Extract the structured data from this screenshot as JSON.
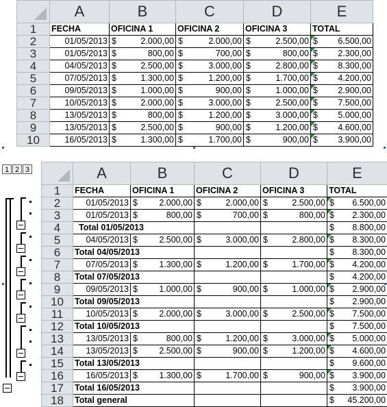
{
  "columns": [
    "A",
    "B",
    "C",
    "D",
    "E"
  ],
  "headers": [
    "FECHA",
    "OFICINA 1",
    "OFICINA 2",
    "OFICINA 3",
    "TOTAL"
  ],
  "currency": "$",
  "outline_levels": [
    "1",
    "2",
    "3"
  ],
  "table1_rows": [
    {
      "n": "1",
      "type": "header"
    },
    {
      "n": "2",
      "date": "01/05/2013",
      "b": "2.000,00",
      "c": "2.000,00",
      "d": "2.500,00",
      "e": "6.500,00"
    },
    {
      "n": "3",
      "date": "01/05/2013",
      "b": "800,00",
      "c": "700,00",
      "d": "800,00",
      "e": "2.300,00"
    },
    {
      "n": "4",
      "date": "04/05/2013",
      "b": "2.500,00",
      "c": "3.000,00",
      "d": "2.800,00",
      "e": "8.300,00"
    },
    {
      "n": "5",
      "date": "07/05/2013",
      "b": "1.300,00",
      "c": "1.200,00",
      "d": "1.700,00",
      "e": "4.200,00"
    },
    {
      "n": "6",
      "date": "09/05/2013",
      "b": "1.000,00",
      "c": "900,00",
      "d": "1.000,00",
      "e": "2.900,00"
    },
    {
      "n": "7",
      "date": "10/05/2013",
      "b": "2.000,00",
      "c": "3.000,00",
      "d": "2.500,00",
      "e": "7.500,00"
    },
    {
      "n": "8",
      "date": "13/05/2013",
      "b": "800,00",
      "c": "1.200,00",
      "d": "3.000,00",
      "e": "5.000,00"
    },
    {
      "n": "9",
      "date": "13/05/2013",
      "b": "2.500,00",
      "c": "900,00",
      "d": "1.200,00",
      "e": "4.600,00"
    },
    {
      "n": "10",
      "date": "16/05/2013",
      "b": "1.300,00",
      "c": "1.700,00",
      "d": "900,00",
      "e": "3.900,00"
    }
  ],
  "table2_rows": [
    {
      "n": "1",
      "type": "header"
    },
    {
      "n": "2",
      "type": "data",
      "date": "01/05/2013",
      "b": "2.000,00",
      "c": "2.000,00",
      "d": "2.500,00",
      "e": "6.500,00"
    },
    {
      "n": "3",
      "type": "data",
      "date": "01/05/2013",
      "b": "800,00",
      "c": "700,00",
      "d": "800,00",
      "e": "2.300,00"
    },
    {
      "n": "4",
      "type": "subtotal",
      "label": "Total 01/05/2013",
      "e": "8.800,00",
      "indent": true
    },
    {
      "n": "5",
      "type": "data",
      "date": "04/05/2013",
      "b": "2.500,00",
      "c": "3.000,00",
      "d": "2.800,00",
      "e": "8.300,00"
    },
    {
      "n": "6",
      "type": "subtotal",
      "label": "Total 04/05/2013",
      "e": "8.300,00"
    },
    {
      "n": "7",
      "type": "data",
      "date": "07/05/2013",
      "b": "1.300,00",
      "c": "1.200,00",
      "d": "1.700,00",
      "e": "4.200,00"
    },
    {
      "n": "8",
      "type": "subtotal",
      "label": "Total 07/05/2013",
      "e": "4.200,00"
    },
    {
      "n": "9",
      "type": "data",
      "date": "09/05/2013",
      "b": "1.000,00",
      "c": "900,00",
      "d": "1.000,00",
      "e": "2.900,00"
    },
    {
      "n": "10",
      "type": "subtotal",
      "label": "Total 09/05/2013",
      "e": "2.900,00"
    },
    {
      "n": "11",
      "type": "data",
      "date": "10/05/2013",
      "b": "2.000,00",
      "c": "3.000,00",
      "d": "2.500,00",
      "e": "7.500,00"
    },
    {
      "n": "12",
      "type": "subtotal",
      "label": "Total 10/05/2013",
      "e": "7.500,00"
    },
    {
      "n": "13",
      "type": "data",
      "date": "13/05/2013",
      "b": "800,00",
      "c": "1.200,00",
      "d": "3.000,00",
      "e": "5.000,00"
    },
    {
      "n": "14",
      "type": "data",
      "date": "13/05/2013",
      "b": "2.500,00",
      "c": "900,00",
      "d": "1.200,00",
      "e": "4.600,00"
    },
    {
      "n": "15",
      "type": "subtotal",
      "label": "Total 13/05/2013",
      "e": "9.600,00"
    },
    {
      "n": "16",
      "type": "data",
      "date": "16/05/2013",
      "b": "1.300,00",
      "c": "1.700,00",
      "d": "900,00",
      "e": "3.900,00"
    },
    {
      "n": "17",
      "type": "subtotal",
      "label": "Total 16/05/2013",
      "e": "3.900,00"
    },
    {
      "n": "18",
      "type": "grand",
      "label": "Total general",
      "e": "45.200,00"
    }
  ]
}
